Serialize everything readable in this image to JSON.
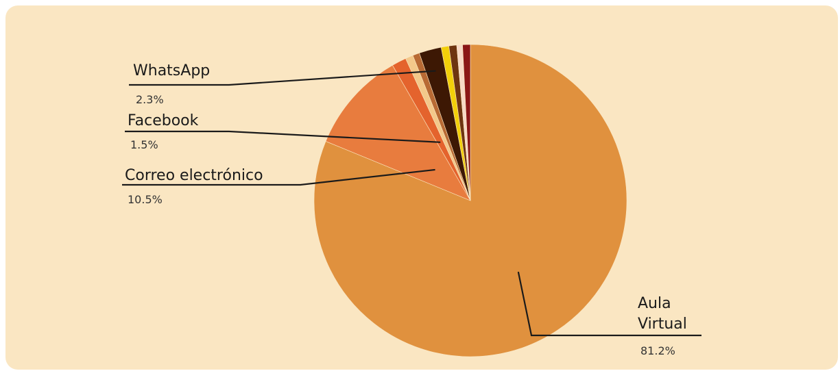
{
  "chart_data": {
    "type": "pie",
    "slices": [
      {
        "label": "Aula Virtual",
        "label_lines": [
          "Aula",
          "Virtual"
        ],
        "value_label": "81.2%",
        "value": 81.2,
        "color": "#e0913e",
        "labeled": true
      },
      {
        "label": "Correo electrónico",
        "label_lines": [
          "Correo electrónico"
        ],
        "value_label": "10.5%",
        "value": 10.5,
        "color": "#e87c3e",
        "labeled": true
      },
      {
        "label": "Facebook",
        "label_lines": [
          "Facebook"
        ],
        "value_label": "1.5%",
        "value": 1.5,
        "color": "#e4632d",
        "labeled": true
      },
      {
        "label": "",
        "value": 0.8,
        "color": "#f3c88a",
        "labeled": false
      },
      {
        "label": "",
        "value": 0.7,
        "color": "#b86a34",
        "labeled": false
      },
      {
        "label": "WhatsApp",
        "label_lines": [
          "WhatsApp"
        ],
        "value_label": "2.3%",
        "value": 2.3,
        "color": "#3d1804",
        "labeled": true
      },
      {
        "label": "",
        "value": 0.8,
        "color": "#f2cf0a",
        "labeled": false
      },
      {
        "label": "",
        "value": 0.8,
        "color": "#6e3410",
        "labeled": false
      },
      {
        "label": "",
        "value": 0.6,
        "color": "#f7d9c6",
        "labeled": false
      },
      {
        "label": "",
        "value": 0.8,
        "color": "#8a1616",
        "labeled": false
      }
    ],
    "start_angle_deg": 0,
    "direction": "clockwise-from-top, listed counter-clockwise starting with Aula Virtual"
  },
  "colors": {
    "background": "#fae6c2",
    "leader_line": "#1a1a1a"
  }
}
